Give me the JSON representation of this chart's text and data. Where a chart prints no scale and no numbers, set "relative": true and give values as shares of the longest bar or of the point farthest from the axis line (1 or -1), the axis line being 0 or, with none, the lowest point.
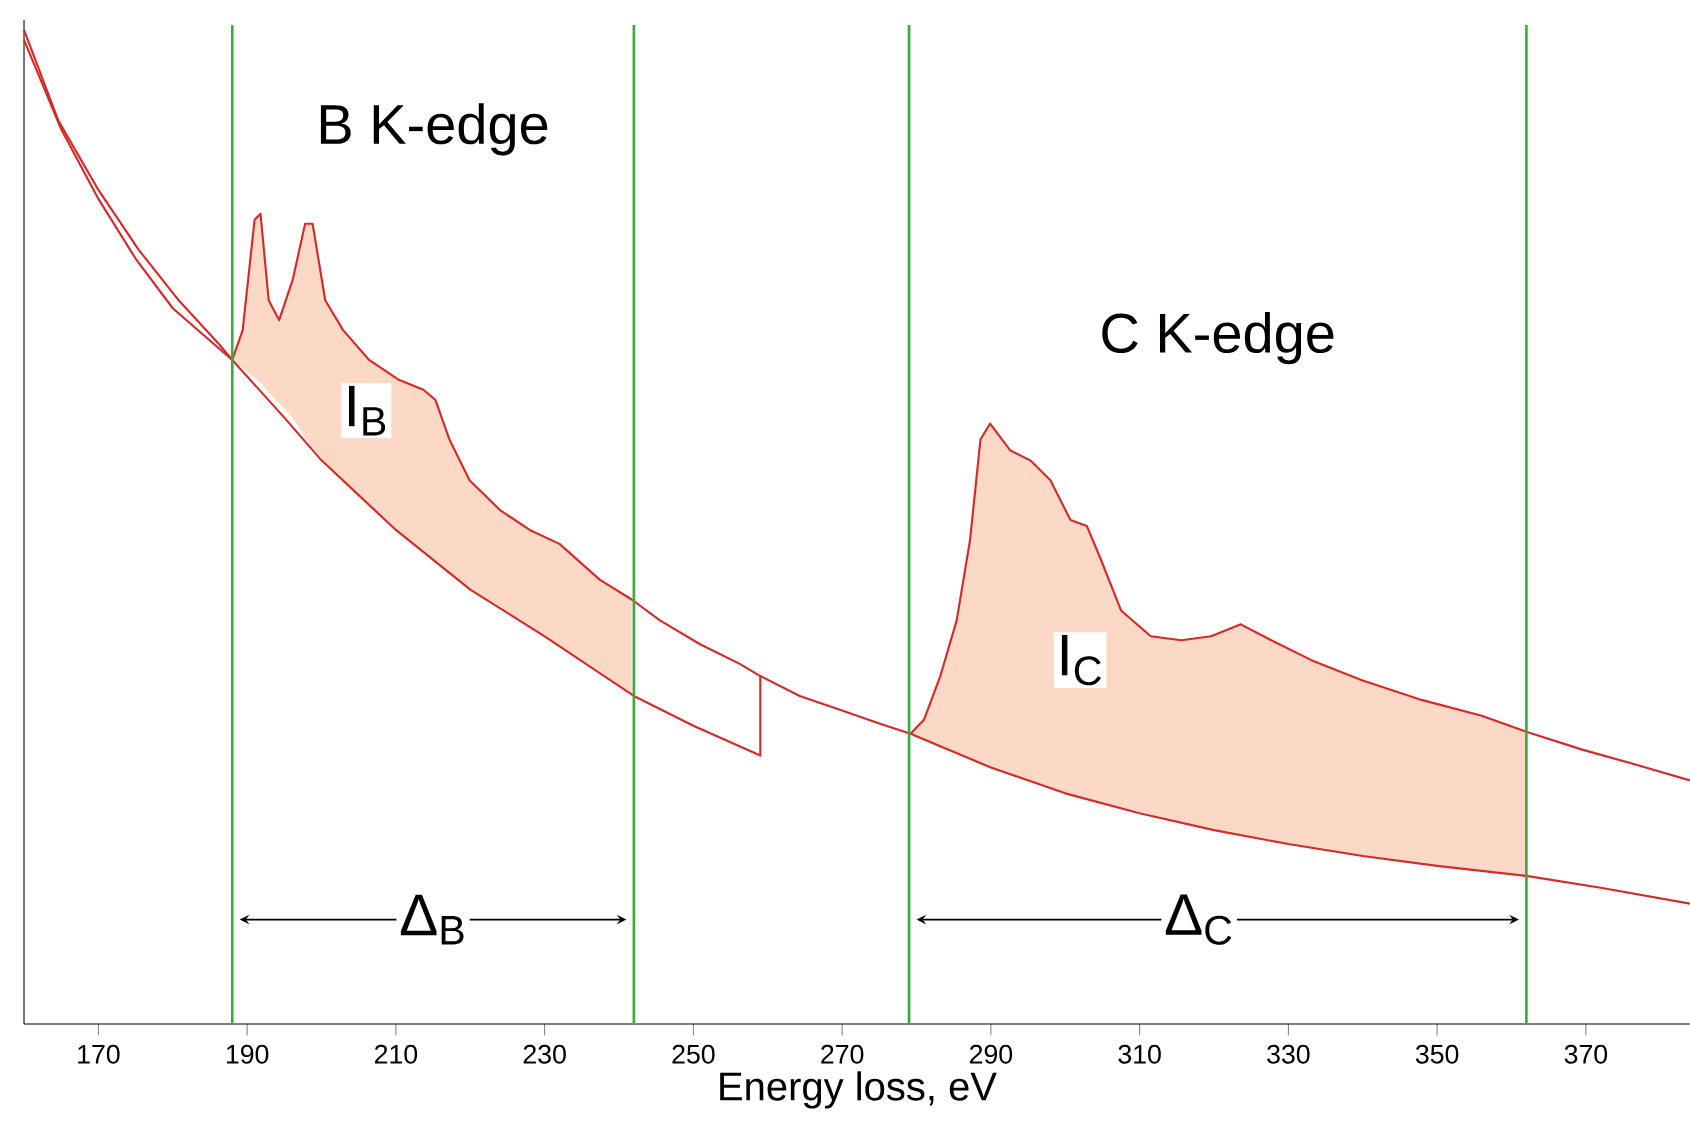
{
  "chart_data": {
    "type": "line",
    "relative": true,
    "xlabel": "Energy loss, eV",
    "xlim": [
      160,
      384
    ],
    "xticks": [
      170,
      190,
      210,
      230,
      250,
      270,
      290,
      310,
      330,
      350,
      370
    ],
    "series": [
      {
        "color": "#d42a2a",
        "x": [
          160,
          164.6,
          170,
          175.4,
          180.8,
          186.2,
          188,
          189.4,
          191,
          191.8,
          192.9,
          194.3,
          196.1,
          197.8,
          198.8,
          200.5,
          202.9,
          206.4,
          210.4,
          213.7,
          215.3,
          217.2,
          219.9,
          224,
          228,
          232,
          237.4,
          241.7,
          245.5,
          250.9,
          256.3,
          259,
          264.3,
          269.7,
          275.1,
          279.2,
          281,
          283.2,
          285.4,
          287.2,
          288.6,
          289.9,
          292.6,
          295.3,
          298,
          300.7,
          302.9,
          304.8,
          307.5,
          311.5,
          315.6,
          319.6,
          323.6,
          327.7,
          333.1,
          339.8,
          347.9,
          356,
          362,
          369.5,
          376.2,
          384
        ],
        "values": [
          1.0,
          0.909,
          0.839,
          0.779,
          0.728,
          0.684,
          0.668,
          0.698,
          0.809,
          0.815,
          0.728,
          0.708,
          0.748,
          0.805,
          0.805,
          0.728,
          0.698,
          0.668,
          0.648,
          0.638,
          0.628,
          0.588,
          0.547,
          0.517,
          0.497,
          0.483,
          0.447,
          0.427,
          0.406,
          0.382,
          0.362,
          0.35,
          0.33,
          0.316,
          0.302,
          0.292,
          0.306,
          0.35,
          0.406,
          0.487,
          0.588,
          0.604,
          0.577,
          0.567,
          0.547,
          0.507,
          0.501,
          0.467,
          0.416,
          0.39,
          0.386,
          0.39,
          0.402,
          0.386,
          0.366,
          0.346,
          0.326,
          0.31,
          0.294,
          0.276,
          0.262,
          0.245
        ],
        "upper": [
          null,
          null,
          null,
          null,
          null,
          null,
          0.668,
          0.698,
          0.809,
          0.815,
          0.728,
          0.708,
          0.748,
          0.805,
          0.805,
          0.728,
          0.698,
          0.668,
          0.648,
          0.638,
          0.628,
          0.588,
          0.547,
          0.517,
          0.497,
          0.483,
          0.447,
          0.427,
          null,
          null,
          null,
          null,
          null,
          null,
          null,
          0.292,
          0.306,
          0.35,
          0.406,
          0.487,
          0.588,
          0.604,
          0.577,
          0.567,
          0.547,
          0.507,
          0.501,
          0.467,
          0.416,
          0.39,
          0.386,
          0.39,
          0.402,
          0.386,
          0.366,
          0.346,
          0.326,
          0.31,
          0.294,
          null,
          null,
          null
        ],
        "lower": [
          null,
          null,
          null,
          null,
          null,
          null,
          0.668,
          0.66,
          0.65,
          0.645,
          0.635,
          0.625,
          0.61,
          0.59,
          0.58,
          0.565,
          0.545,
          0.52,
          0.495,
          0.475,
          0.465,
          0.453,
          0.438,
          0.42,
          0.4,
          0.38,
          0.355,
          0.332,
          null,
          null,
          null,
          null,
          null,
          null,
          null,
          0.292,
          0.285,
          0.278,
          0.272,
          0.266,
          0.262,
          0.258,
          0.251,
          0.244,
          0.237,
          0.231,
          0.227,
          0.223,
          0.218,
          0.211,
          0.202,
          0.195,
          0.19,
          0.184,
          0.178,
          0.169,
          0.161,
          0.154,
          0.149,
          null,
          null,
          null
        ]
      },
      {
        "color": "#d42a2a",
        "x": [
          160,
          165,
          170,
          175,
          180,
          188,
          195,
          200,
          210,
          220,
          230,
          242,
          250,
          259,
          259
        ],
        "values": [
          0.99,
          0.9,
          0.83,
          0.77,
          0.72,
          0.668,
          0.61,
          0.567,
          0.497,
          0.437,
          0.39,
          0.33,
          0.3,
          0.27,
          0.35
        ]
      },
      {
        "color": "#d42a2a",
        "x": [
          279.2,
          290,
          300,
          310,
          320,
          330,
          340,
          350,
          362,
          372,
          384
        ],
        "values": [
          0.292,
          0.258,
          0.232,
          0.212,
          0.195,
          0.181,
          0.169,
          0.159,
          0.149,
          0.137,
          0.121
        ]
      }
    ],
    "ref_lines": [
      {
        "axis": "x",
        "value": 188,
        "color": "#3caa3c"
      },
      {
        "axis": "x",
        "value": 242,
        "color": "#3caa3c"
      },
      {
        "axis": "x",
        "value": 279,
        "color": "#3caa3c"
      },
      {
        "axis": "x",
        "value": 362,
        "color": "#3caa3c"
      }
    ],
    "annotations": [
      "B K-edge",
      "C K-edge",
      {
        "text": "I$_{B}$",
        "x": 206,
        "y": 0.617
      },
      {
        "text": "I$_{C}$",
        "x": 302,
        "y": 0.366
      },
      {
        "text": "Δ$_{B}$",
        "x": 215,
        "y": 0.105
      },
      {
        "text": "Δ$_{C}$",
        "x": 318,
        "y": 0.105
      }
    ]
  }
}
